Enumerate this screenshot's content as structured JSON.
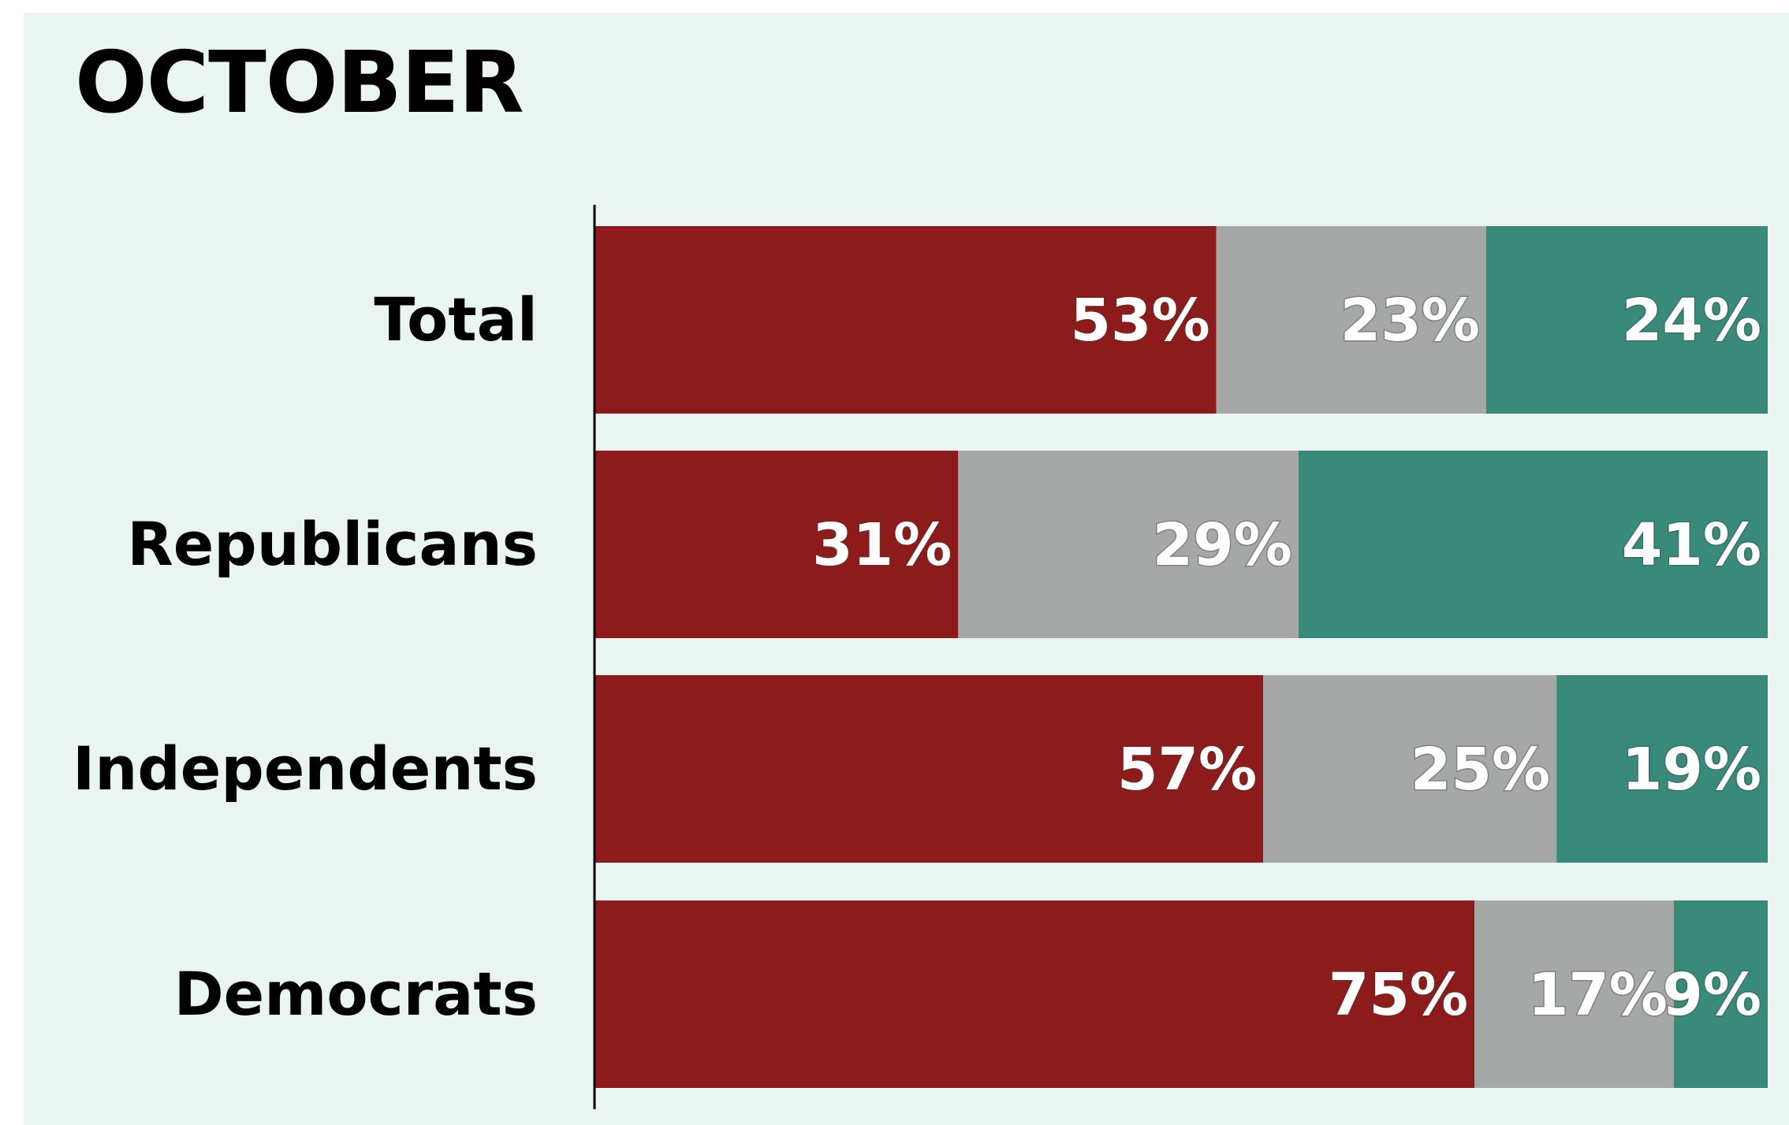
{
  "chart_data": {
    "type": "bar",
    "orientation": "horizontal",
    "stacked": true,
    "title": "OCTOBER",
    "categories": [
      "Total",
      "Republicans",
      "Independents",
      "Democrats"
    ],
    "series": [
      {
        "color": "#8e1b1b",
        "values": [
          53,
          31,
          57,
          75
        ]
      },
      {
        "color": "#a5a8a6",
        "values": [
          23,
          29,
          25,
          17
        ]
      },
      {
        "color": "#3a8a7c",
        "values": [
          24,
          41,
          19,
          9
        ]
      }
    ],
    "value_labels": [
      [
        "53%",
        "23%",
        "24%"
      ],
      [
        "31%",
        "29%",
        "41%"
      ],
      [
        "57%",
        "25%",
        "19%"
      ],
      [
        "75%",
        "17%",
        "9%"
      ]
    ],
    "xlim": [
      0,
      100
    ],
    "grid": false,
    "legend": "none"
  },
  "colors": {
    "panel_background": "#eaf4f1",
    "axis": "#000000",
    "label_text": "#ffffff"
  }
}
